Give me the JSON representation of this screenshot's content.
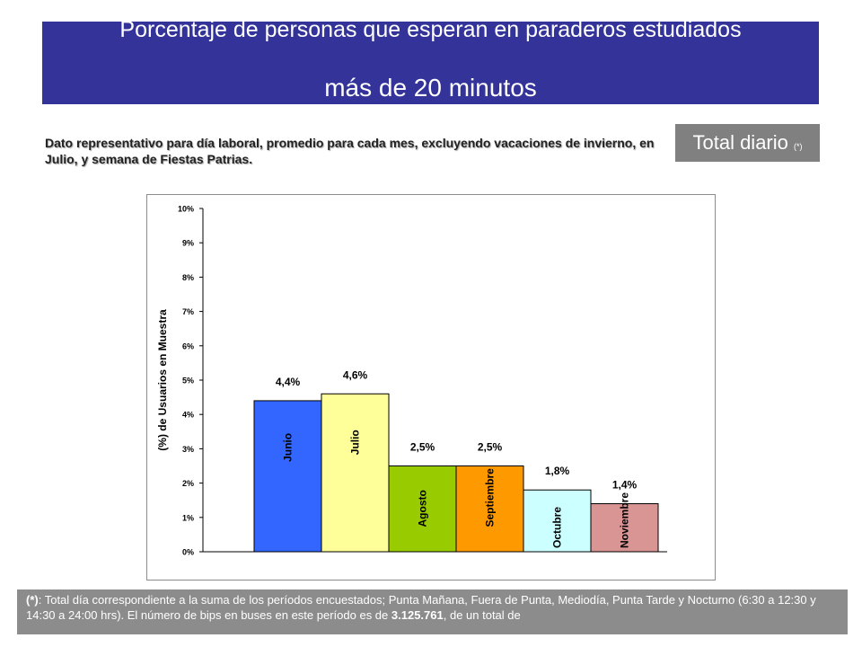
{
  "header": {
    "title_line1": "Porcentaje de personas que esperan en paraderos estudiados",
    "title_line2": "más de 20 minutos"
  },
  "note": "Dato representativo para día laboral, promedio para cada mes, excluyendo vacaciones de invierno, en Julio, y semana de Fiestas Patrias.",
  "total_badge": {
    "label": "Total diario",
    "marker": "(*)"
  },
  "footer": {
    "marker": "(*)",
    "text_a": ": Total día correspondiente a la suma de los períodos encuestados; Punta Mañana, Fuera de Punta, Mediodía, Punta Tarde y Nocturno (6:30 a 12:30  y 14:30 a 24:00 hrs).  El número de bips en buses en este período es de ",
    "bips": "3.125.761",
    "text_b": ", de un total de"
  },
  "chart_data": {
    "type": "bar",
    "ylabel": "(%) de Usuarios en Muestra",
    "ylim": [
      0,
      10
    ],
    "yticks": [
      "0%",
      "1%",
      "2%",
      "3%",
      "4%",
      "5%",
      "6%",
      "7%",
      "8%",
      "9%",
      "10%"
    ],
    "grid": false,
    "categories": [
      "Junio",
      "Julio",
      "Agosto",
      "Septiembre",
      "Octubre",
      "Noviembre"
    ],
    "values": [
      4.4,
      4.6,
      2.5,
      2.5,
      1.8,
      1.4
    ],
    "data_labels": [
      "4,4%",
      "4,6%",
      "2,5%",
      "2,5%",
      "1,8%",
      "1,4%"
    ],
    "colors": [
      "#3366ff",
      "#ffff99",
      "#99cc00",
      "#ff9900",
      "#ccffff",
      "#d99594"
    ]
  }
}
